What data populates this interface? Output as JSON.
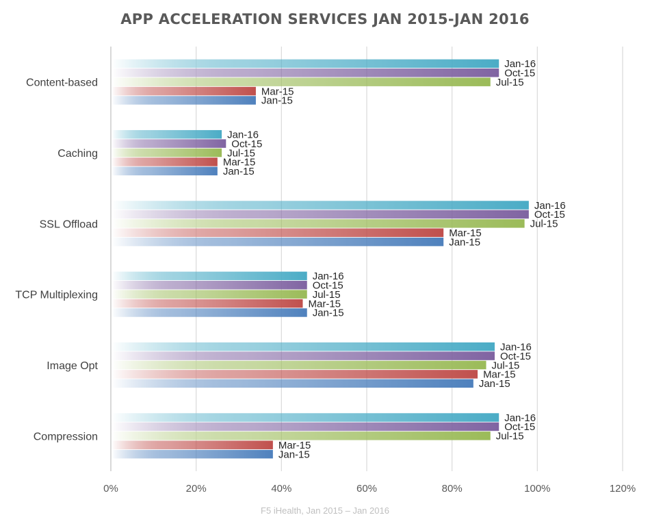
{
  "chart_data": {
    "type": "bar",
    "orientation": "horizontal",
    "title": "APP ACCELERATION SERVICES JAN 2015-JAN 2016",
    "footer": "F5 iHealth, Jan 2015 – Jan 2016",
    "categories": [
      "Content-based",
      "Caching",
      "SSL Offload",
      "TCP Multiplexing",
      "Image Opt",
      "Compression"
    ],
    "series": [
      {
        "name": "Jan-16",
        "color": "#4bacc6",
        "values": [
          91,
          26,
          98,
          46,
          90,
          91
        ]
      },
      {
        "name": "Oct-15",
        "color": "#8064a2",
        "values": [
          91,
          27,
          98,
          46,
          90,
          91
        ]
      },
      {
        "name": "Jul-15",
        "color": "#9bbb59",
        "values": [
          89,
          26,
          97,
          46,
          88,
          89
        ]
      },
      {
        "name": "Mar-15",
        "color": "#c0504d",
        "values": [
          34,
          25,
          78,
          45,
          86,
          38
        ]
      },
      {
        "name": "Jan-15",
        "color": "#4f81bd",
        "values": [
          34,
          25,
          78,
          46,
          85,
          38
        ]
      }
    ],
    "xlim": [
      0,
      120
    ],
    "xticks": [
      0,
      20,
      40,
      60,
      80,
      100,
      120
    ],
    "tick_suffix": "%",
    "grid": true,
    "data_labels": "series-name",
    "legend": "none"
  }
}
